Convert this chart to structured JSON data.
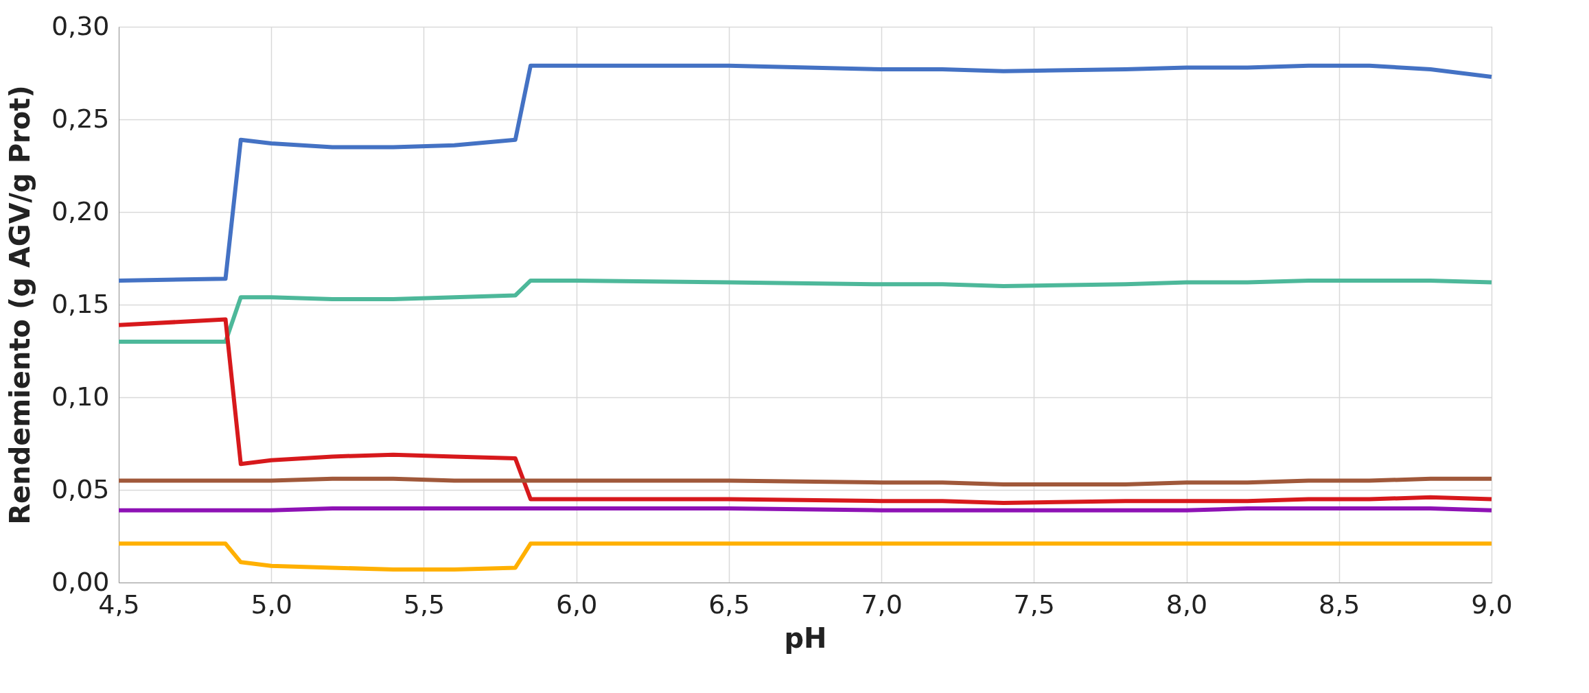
{
  "chart_data": {
    "type": "line",
    "xlabel": "pH",
    "ylabel": "Rendemiento (g AGV/g Prot)",
    "x": [
      4.5,
      4.85,
      4.9,
      5.0,
      5.2,
      5.4,
      5.6,
      5.8,
      5.85,
      6.0,
      6.5,
      7.0,
      7.2,
      7.4,
      7.8,
      8.0,
      8.2,
      8.4,
      8.6,
      8.8,
      9.0
    ],
    "series": [
      {
        "color": "#4472c4",
        "values": [
          0.163,
          0.164,
          0.239,
          0.237,
          0.235,
          0.235,
          0.236,
          0.239,
          0.279,
          0.279,
          0.279,
          0.277,
          0.277,
          0.276,
          0.277,
          0.278,
          0.278,
          0.279,
          0.279,
          0.277,
          0.273
        ]
      },
      {
        "color": "#4db89a",
        "values": [
          0.13,
          0.13,
          0.154,
          0.154,
          0.153,
          0.153,
          0.154,
          0.155,
          0.163,
          0.163,
          0.162,
          0.161,
          0.161,
          0.16,
          0.161,
          0.162,
          0.162,
          0.163,
          0.163,
          0.163,
          0.162
        ]
      },
      {
        "color": "#d7191c",
        "values": [
          0.139,
          0.142,
          0.064,
          0.066,
          0.068,
          0.069,
          0.068,
          0.067,
          0.045,
          0.045,
          0.045,
          0.044,
          0.044,
          0.043,
          0.044,
          0.044,
          0.044,
          0.045,
          0.045,
          0.046,
          0.045
        ]
      },
      {
        "color": "#a0583a",
        "values": [
          0.055,
          0.055,
          0.055,
          0.055,
          0.056,
          0.056,
          0.055,
          0.055,
          0.055,
          0.055,
          0.055,
          0.054,
          0.054,
          0.053,
          0.053,
          0.054,
          0.054,
          0.055,
          0.055,
          0.056,
          0.056
        ]
      },
      {
        "color": "#8e12b5",
        "values": [
          0.039,
          0.039,
          0.039,
          0.039,
          0.04,
          0.04,
          0.04,
          0.04,
          0.04,
          0.04,
          0.04,
          0.039,
          0.039,
          0.039,
          0.039,
          0.039,
          0.04,
          0.04,
          0.04,
          0.04,
          0.039
        ]
      },
      {
        "color": "#ffb000",
        "values": [
          0.021,
          0.021,
          0.011,
          0.009,
          0.008,
          0.007,
          0.007,
          0.008,
          0.021,
          0.021,
          0.021,
          0.021,
          0.021,
          0.021,
          0.021,
          0.021,
          0.021,
          0.021,
          0.021,
          0.021,
          0.021
        ]
      }
    ],
    "xlim": [
      4.5,
      9.0
    ],
    "xticks": [
      {
        "value": 4.5,
        "label": "4,5"
      },
      {
        "value": 5.0,
        "label": "5,0"
      },
      {
        "value": 5.5,
        "label": "5,5"
      },
      {
        "value": 6.0,
        "label": "6,0"
      },
      {
        "value": 6.5,
        "label": "6,5"
      },
      {
        "value": 7.0,
        "label": "7,0"
      },
      {
        "value": 7.5,
        "label": "7,5"
      },
      {
        "value": 8.0,
        "label": "8,0"
      },
      {
        "value": 8.5,
        "label": "8,5"
      },
      {
        "value": 9.0,
        "label": "9,0"
      }
    ],
    "ylim": [
      0,
      0.3
    ],
    "yticks": [
      {
        "value": 0,
        "label": "0,00"
      },
      {
        "value": 0.05,
        "label": "0,05"
      },
      {
        "value": 0.1,
        "label": "0,10"
      },
      {
        "value": 0.15,
        "label": "0,15"
      },
      {
        "value": 0.2,
        "label": "0,20"
      },
      {
        "value": 0.25,
        "label": "0,25"
      },
      {
        "value": 0.3,
        "label": "0,30"
      }
    ],
    "grid": true,
    "legend": false,
    "marker": "none",
    "line_style": "solid"
  }
}
